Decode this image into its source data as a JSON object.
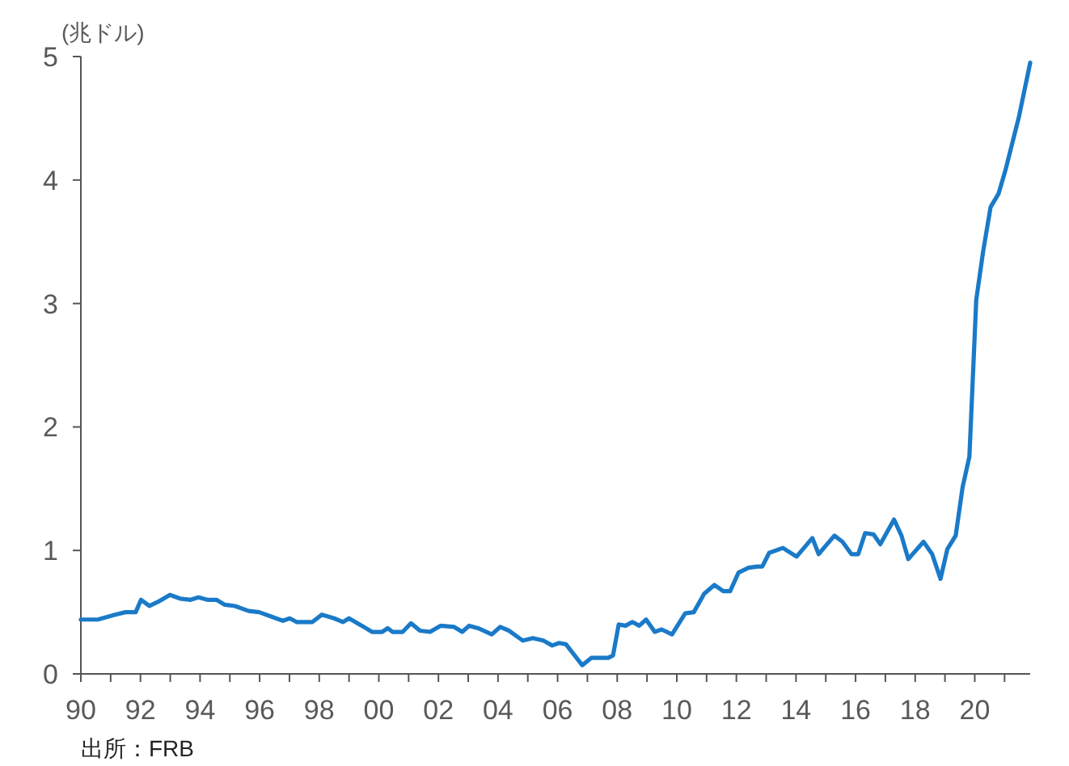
{
  "chart_data": {
    "type": "line",
    "ylabel": "(兆ドル)",
    "annotations": [
      "出所：FRB"
    ],
    "x": [
      1990.0,
      1990.57,
      1991.15,
      1991.5,
      1991.84,
      1992.02,
      1992.3,
      1992.64,
      1992.99,
      1993.33,
      1993.68,
      1993.95,
      1994.25,
      1994.55,
      1994.83,
      1995.17,
      1995.63,
      1995.98,
      1996.44,
      1996.78,
      1997.01,
      1997.24,
      1997.77,
      1998.09,
      1998.5,
      1998.8,
      1999.0,
      1999.43,
      1999.77,
      2000.11,
      2000.3,
      2000.46,
      2000.8,
      2001.08,
      2001.38,
      2001.72,
      2002.07,
      2002.53,
      2002.8,
      2003.03,
      2003.33,
      2003.79,
      2004.07,
      2004.37,
      2004.83,
      2005.17,
      2005.52,
      2005.82,
      2006.05,
      2006.28,
      2006.83,
      2007.13,
      2007.7,
      2007.86,
      2008.05,
      2008.28,
      2008.51,
      2008.74,
      2008.97,
      2009.26,
      2009.49,
      2009.84,
      2010.28,
      2010.57,
      2010.92,
      2011.26,
      2011.56,
      2011.79,
      2012.07,
      2012.41,
      2012.71,
      2012.87,
      2013.1,
      2013.56,
      2014.02,
      2014.55,
      2014.76,
      2015.29,
      2015.56,
      2015.86,
      2016.09,
      2016.32,
      2016.6,
      2016.83,
      2017.29,
      2017.54,
      2017.77,
      2018.28,
      2018.57,
      2018.85,
      2019.08,
      2019.36,
      2019.59,
      2019.82,
      2020.05,
      2020.28,
      2020.53,
      2020.8,
      2021.03,
      2021.49,
      2021.86
    ],
    "series": [
      {
        "color": "#1a7ac8",
        "values": [
          0.44,
          0.44,
          0.48,
          0.5,
          0.5,
          0.6,
          0.55,
          0.59,
          0.64,
          0.61,
          0.6,
          0.62,
          0.6,
          0.6,
          0.56,
          0.55,
          0.51,
          0.5,
          0.46,
          0.43,
          0.45,
          0.42,
          0.42,
          0.48,
          0.45,
          0.42,
          0.45,
          0.39,
          0.34,
          0.34,
          0.37,
          0.34,
          0.34,
          0.41,
          0.35,
          0.34,
          0.39,
          0.38,
          0.34,
          0.39,
          0.37,
          0.32,
          0.38,
          0.35,
          0.27,
          0.29,
          0.27,
          0.23,
          0.25,
          0.24,
          0.07,
          0.13,
          0.13,
          0.15,
          0.4,
          0.39,
          0.42,
          0.39,
          0.44,
          0.34,
          0.36,
          0.32,
          0.49,
          0.5,
          0.65,
          0.72,
          0.67,
          0.67,
          0.82,
          0.86,
          0.87,
          0.87,
          0.98,
          1.02,
          0.95,
          1.1,
          0.97,
          1.12,
          1.07,
          0.97,
          0.97,
          1.14,
          1.13,
          1.05,
          1.25,
          1.12,
          0.93,
          1.07,
          0.97,
          0.77,
          1.01,
          1.12,
          1.51,
          1.76,
          3.03,
          3.42,
          3.78,
          3.89,
          4.08,
          4.52,
          4.95
        ]
      }
    ],
    "xlim": [
      1990,
      2021.86
    ],
    "ylim": [
      0,
      5
    ],
    "yticks": [
      0,
      1,
      2,
      3,
      4,
      5
    ],
    "xticks": [
      {
        "value": 1990,
        "label": "90"
      },
      {
        "value": 1991,
        "label": null
      },
      {
        "value": 1992,
        "label": "92"
      },
      {
        "value": 1993,
        "label": null
      },
      {
        "value": 1994,
        "label": "94"
      },
      {
        "value": 1995,
        "label": null
      },
      {
        "value": 1996,
        "label": "96"
      },
      {
        "value": 1997,
        "label": null
      },
      {
        "value": 1998,
        "label": "98"
      },
      {
        "value": 1999,
        "label": null
      },
      {
        "value": 2000,
        "label": "00"
      },
      {
        "value": 2001,
        "label": null
      },
      {
        "value": 2002,
        "label": "02"
      },
      {
        "value": 2003,
        "label": null
      },
      {
        "value": 2004,
        "label": "04"
      },
      {
        "value": 2005,
        "label": null
      },
      {
        "value": 2006,
        "label": "06"
      },
      {
        "value": 2007,
        "label": null
      },
      {
        "value": 2008,
        "label": "08"
      },
      {
        "value": 2009,
        "label": null
      },
      {
        "value": 2010,
        "label": "10"
      },
      {
        "value": 2011,
        "label": null
      },
      {
        "value": 2012,
        "label": "12"
      },
      {
        "value": 2013,
        "label": null
      },
      {
        "value": 2014,
        "label": "14"
      },
      {
        "value": 2015,
        "label": null
      },
      {
        "value": 2016,
        "label": "16"
      },
      {
        "value": 2017,
        "label": null
      },
      {
        "value": 2018,
        "label": "18"
      },
      {
        "value": 2019,
        "label": null
      },
      {
        "value": 2020,
        "label": "20"
      },
      {
        "value": 2021,
        "label": null
      }
    ]
  }
}
